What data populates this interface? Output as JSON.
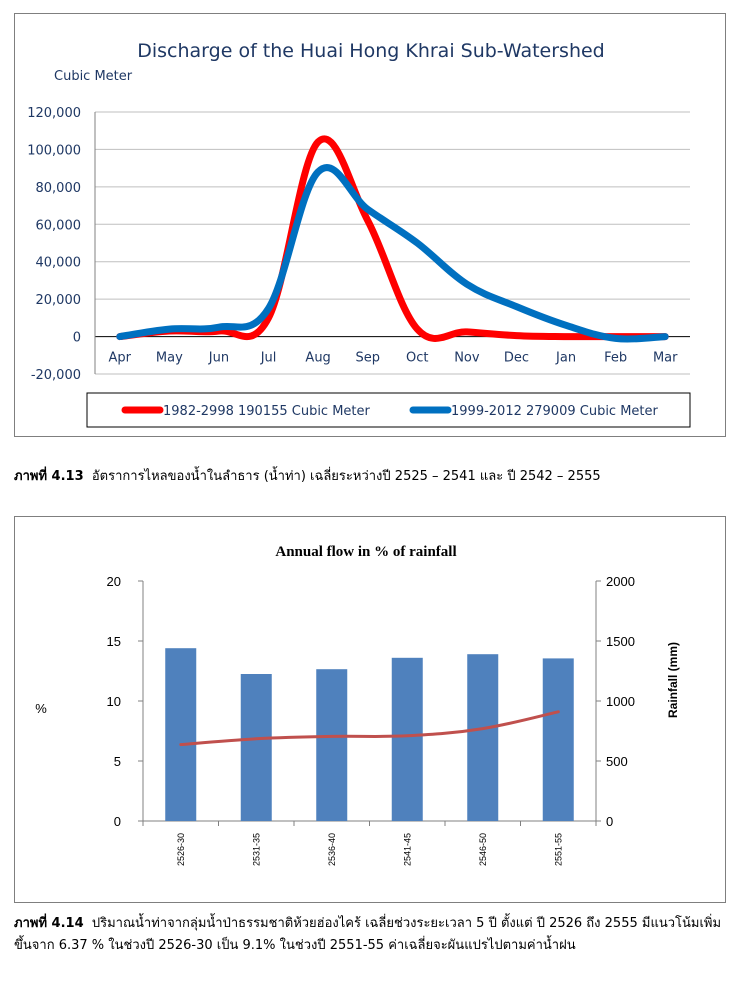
{
  "chart_data": [
    {
      "type": "line",
      "title": "Discharge of the Huai Hong Khrai Sub-Watershed",
      "ylabel": "Cubic Meter",
      "xlabel": "",
      "categories": [
        "Apr",
        "May",
        "Jun",
        "Jul",
        "Aug",
        "Sep",
        "Oct",
        "Nov",
        "Dec",
        "Jan",
        "Feb",
        "Mar"
      ],
      "ylim": [
        -20000,
        120000
      ],
      "yticks": [
        -20000,
        0,
        20000,
        40000,
        60000,
        80000,
        100000,
        120000
      ],
      "ytick_labels": [
        "-20,000",
        "0",
        "20,000",
        "40,000",
        "60,000",
        "80,000",
        "100,000",
        "120,000"
      ],
      "grid": true,
      "legend": "bottom",
      "series": [
        {
          "name": "1982-2998  190155 Cubic Meter",
          "color": "#ff0000",
          "values": [
            0,
            3000,
            3000,
            10000,
            104000,
            62000,
            4000,
            2500,
            500,
            0,
            0,
            0
          ]
        },
        {
          "name": "1999-2012  279009 Cubic Meter",
          "color": "#0070c0",
          "values": [
            0,
            4000,
            5000,
            15000,
            88000,
            68000,
            50000,
            28000,
            16000,
            6000,
            -1000,
            0
          ]
        }
      ]
    },
    {
      "type": "bar",
      "title": "Annual flow in % of rainfall",
      "ylabel": "%",
      "y2label": "Rainfall (mm)",
      "xlabel": "",
      "categories": [
        "2526-30",
        "2531-35",
        "2536-40",
        "2541-45",
        "2546-50",
        "2551-55"
      ],
      "ylim": [
        0,
        20
      ],
      "yticks": [
        0,
        5,
        10,
        15,
        20
      ],
      "y2lim": [
        0,
        2000
      ],
      "y2ticks": [
        0,
        500,
        1000,
        1500,
        2000
      ],
      "grid": false,
      "series": [
        {
          "type": "bar",
          "axis": "y2",
          "color": "#4f81bd",
          "values": [
            1440,
            1225,
            1265,
            1360,
            1390,
            1355
          ]
        },
        {
          "type": "line",
          "axis": "y",
          "color": "#c0504d",
          "values": [
            6.37,
            6.85,
            7.05,
            7.1,
            7.7,
            9.1
          ]
        }
      ]
    }
  ],
  "captions": {
    "fig413_label": "ภาพที่ 4.13",
    "fig413_text": "อัตราการไหลของน้ำในลำธาร (น้ำท่า) เฉลี่ยระหว่างปี 2525 – 2541 และ ปี 2542 – 2555",
    "fig414_label": "ภาพที่ 4.14",
    "fig414_text": "ปริมาณน้ำท่าจากลุ่มน้ำป่าธรรมชาติห้วยฮ่องไคร้ เฉลี่ยช่วงระยะเวลา 5 ปี ตั้งแต่ ปี 2526 ถึง 2555 มีแนวโน้มเพิ่มขึ้นจาก 6.37 % ในช่วงปี 2526-30 เป็น 9.1% ในช่วงปี 2551-55 ค่าเฉลี่ยจะผันแปรไปตามค่าน้ำฝน"
  }
}
